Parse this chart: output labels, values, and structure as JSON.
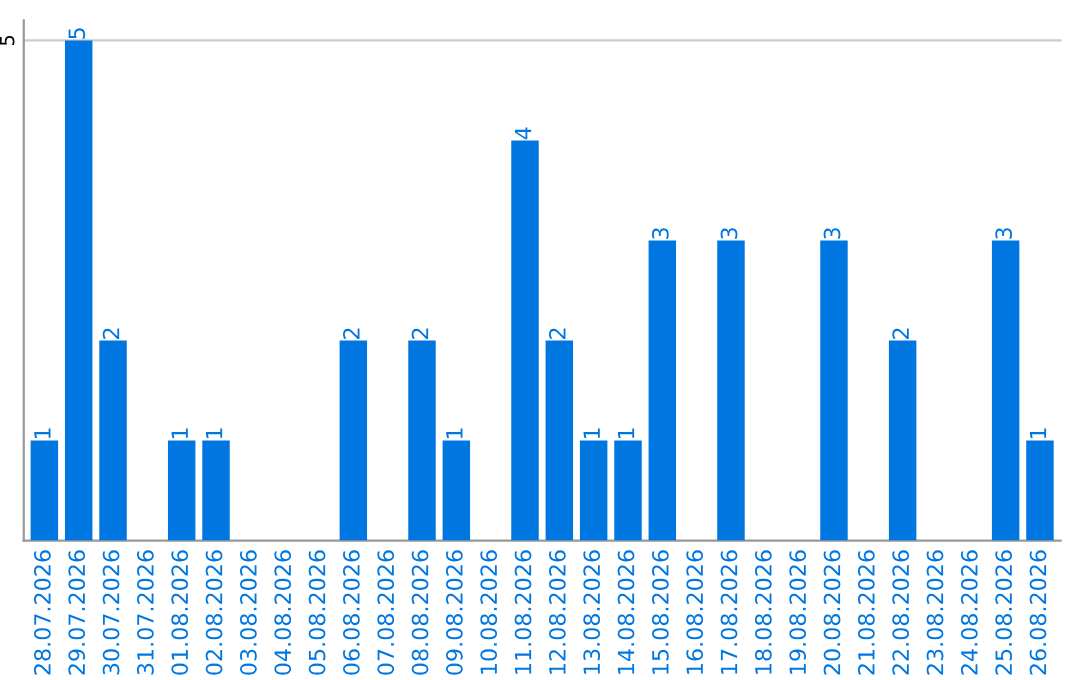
{
  "chart_data": {
    "type": "bar",
    "categories": [
      "28.07.2026",
      "29.07.2026",
      "30.07.2026",
      "31.07.2026",
      "01.08.2026",
      "02.08.2026",
      "03.08.2026",
      "04.08.2026",
      "05.08.2026",
      "06.08.2026",
      "07.08.2026",
      "08.08.2026",
      "09.08.2026",
      "10.08.2026",
      "11.08.2026",
      "12.08.2026",
      "13.08.2026",
      "14.08.2026",
      "15.08.2026",
      "16.08.2026",
      "17.08.2026",
      "18.08.2026",
      "19.08.2026",
      "20.08.2026",
      "21.08.2026",
      "22.08.2026",
      "23.08.2026",
      "24.08.2026",
      "25.08.2026",
      "26.08.2026"
    ],
    "values": [
      1,
      5,
      2,
      0,
      1,
      1,
      0,
      0,
      0,
      2,
      0,
      2,
      1,
      0,
      4,
      2,
      1,
      1,
      3,
      0,
      3,
      0,
      0,
      3,
      0,
      2,
      0,
      0,
      3,
      1
    ],
    "value_labels": [
      "1",
      "5",
      "2",
      null,
      "1",
      "1",
      null,
      null,
      null,
      "2",
      null,
      "2",
      "1",
      null,
      "4",
      "2",
      "1",
      "1",
      "3",
      null,
      "3",
      null,
      null,
      "3",
      null,
      "2",
      null,
      null,
      "3",
      "1"
    ],
    "color": "#0077e0",
    "ylim": [
      0,
      5.2
    ],
    "yticks": [
      5
    ],
    "grid": "y"
  }
}
